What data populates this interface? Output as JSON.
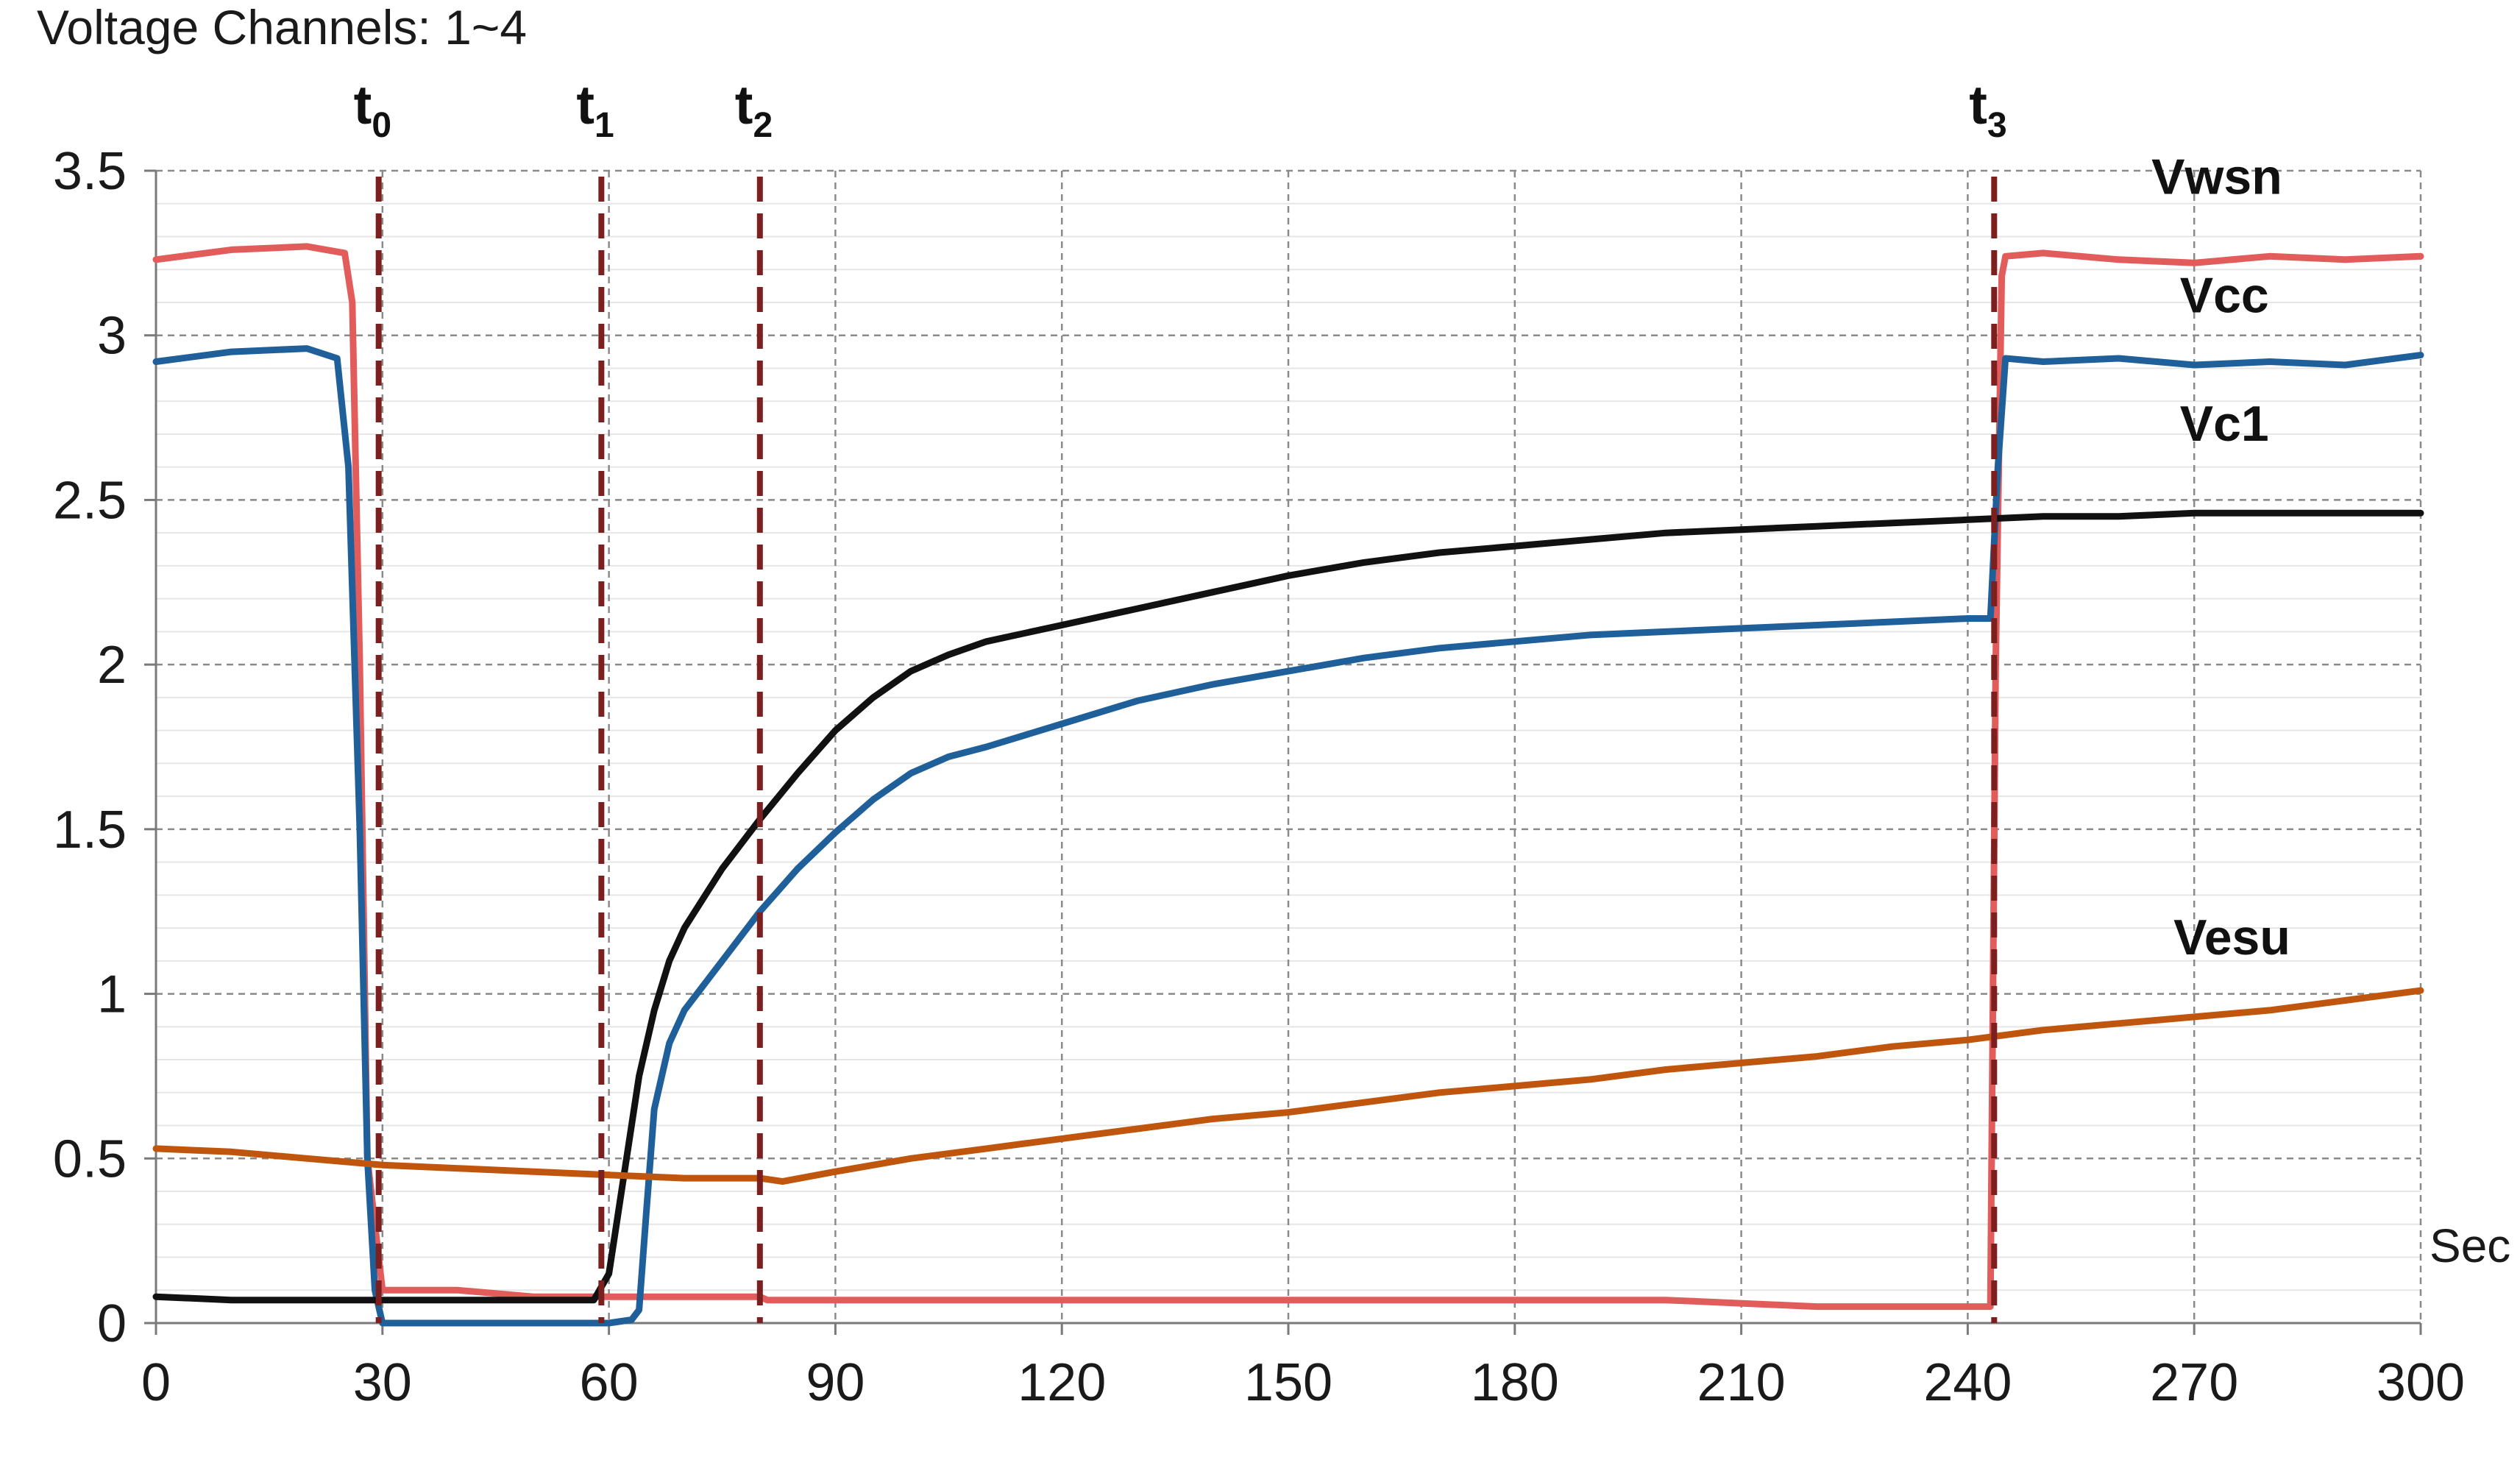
{
  "chart_data": {
    "type": "line",
    "title": "Voltage Channels: 1~4",
    "x_unit_label": "Sec",
    "xlim": [
      0,
      300
    ],
    "ylim": [
      0,
      3.5
    ],
    "x_ticks": [
      0,
      30,
      60,
      90,
      120,
      150,
      180,
      210,
      240,
      270,
      300
    ],
    "y_ticks": [
      0,
      0.5,
      1,
      1.5,
      2,
      2.5,
      3,
      3.5
    ],
    "x_tick_labels": [
      "0",
      "30",
      "60",
      "90",
      "120",
      "150",
      "180",
      "210",
      "240",
      "270",
      "300"
    ],
    "y_tick_labels": [
      "0",
      "0.5",
      "1",
      "1.5",
      "2",
      "2.5",
      "3",
      "3.5"
    ],
    "grid": {
      "major": true,
      "minor_horizontal": true,
      "minor_step": 0.1
    },
    "markers": [
      {
        "base": "t",
        "sub": "0",
        "x": 29.5
      },
      {
        "base": "t",
        "sub": "1",
        "x": 59
      },
      {
        "base": "t",
        "sub": "2",
        "x": 80
      },
      {
        "base": "t",
        "sub": "3",
        "x": 243.5
      }
    ],
    "series": [
      {
        "name": "Vwsn",
        "color": "#e25c5c",
        "x": [
          0,
          10,
          20,
          25,
          26,
          27,
          28,
          30,
          40,
          50,
          58,
          60,
          70,
          80,
          81,
          100,
          150,
          200,
          220,
          230,
          240,
          243,
          243.7,
          244.5,
          245,
          250,
          260,
          270,
          280,
          290,
          300
        ],
        "y": [
          3.23,
          3.26,
          3.27,
          3.25,
          3.1,
          2.0,
          0.5,
          0.1,
          0.1,
          0.08,
          0.08,
          0.08,
          0.08,
          0.08,
          0.07,
          0.07,
          0.07,
          0.07,
          0.05,
          0.05,
          0.05,
          0.05,
          2.0,
          3.18,
          3.24,
          3.25,
          3.23,
          3.22,
          3.24,
          3.23,
          3.24
        ]
      },
      {
        "name": "Vcc",
        "color": "#1f5f9a",
        "x": [
          0,
          10,
          20,
          24,
          25.5,
          27,
          28,
          29,
          30,
          40,
          50,
          60,
          63,
          64,
          65,
          66,
          68,
          70,
          75,
          80,
          85,
          90,
          95,
          100,
          105,
          110,
          120,
          130,
          140,
          150,
          160,
          170,
          180,
          190,
          200,
          210,
          220,
          230,
          240,
          243,
          244,
          245,
          250,
          260,
          270,
          280,
          290,
          300
        ],
        "y": [
          2.92,
          2.95,
          2.96,
          2.93,
          2.6,
          1.5,
          0.5,
          0.1,
          0.0,
          0.0,
          0.0,
          0.0,
          0.01,
          0.04,
          0.35,
          0.65,
          0.85,
          0.95,
          1.1,
          1.25,
          1.38,
          1.49,
          1.59,
          1.67,
          1.72,
          1.75,
          1.82,
          1.89,
          1.94,
          1.98,
          2.02,
          2.05,
          2.07,
          2.09,
          2.1,
          2.11,
          2.12,
          2.13,
          2.14,
          2.14,
          2.6,
          2.93,
          2.92,
          2.93,
          2.91,
          2.92,
          2.91,
          2.94
        ]
      },
      {
        "name": "Vc1",
        "color": "#111111",
        "x": [
          0,
          10,
          20,
          30,
          40,
          50,
          58,
          60,
          62,
          64,
          66,
          68,
          70,
          75,
          80,
          85,
          90,
          95,
          100,
          105,
          110,
          120,
          130,
          140,
          150,
          160,
          170,
          180,
          190,
          200,
          210,
          220,
          230,
          240,
          250,
          260,
          270,
          280,
          290,
          300
        ],
        "y": [
          0.08,
          0.07,
          0.07,
          0.07,
          0.07,
          0.07,
          0.07,
          0.15,
          0.45,
          0.75,
          0.95,
          1.1,
          1.2,
          1.38,
          1.53,
          1.67,
          1.8,
          1.9,
          1.98,
          2.03,
          2.07,
          2.12,
          2.17,
          2.22,
          2.27,
          2.31,
          2.34,
          2.36,
          2.38,
          2.4,
          2.41,
          2.42,
          2.43,
          2.44,
          2.45,
          2.45,
          2.46,
          2.46,
          2.46,
          2.46
        ]
      },
      {
        "name": "Vesu",
        "color": "#c0560e",
        "x": [
          0,
          10,
          20,
          30,
          40,
          50,
          60,
          70,
          80,
          83,
          90,
          100,
          110,
          120,
          130,
          140,
          150,
          160,
          170,
          180,
          190,
          200,
          210,
          220,
          230,
          240,
          250,
          260,
          270,
          280,
          290,
          300
        ],
        "y": [
          0.53,
          0.52,
          0.5,
          0.48,
          0.47,
          0.46,
          0.45,
          0.44,
          0.44,
          0.43,
          0.46,
          0.5,
          0.53,
          0.56,
          0.59,
          0.62,
          0.64,
          0.67,
          0.7,
          0.72,
          0.74,
          0.77,
          0.79,
          0.81,
          0.84,
          0.86,
          0.89,
          0.91,
          0.93,
          0.95,
          0.98,
          1.01
        ]
      }
    ],
    "series_labels": [
      {
        "name": "Vwsn",
        "x": 273,
        "y": 3.43
      },
      {
        "name": "Vcc",
        "x": 274,
        "y": 3.07
      },
      {
        "name": "Vc1",
        "x": 274,
        "y": 2.68
      },
      {
        "name": "Vesu",
        "x": 275,
        "y": 1.12
      }
    ]
  }
}
